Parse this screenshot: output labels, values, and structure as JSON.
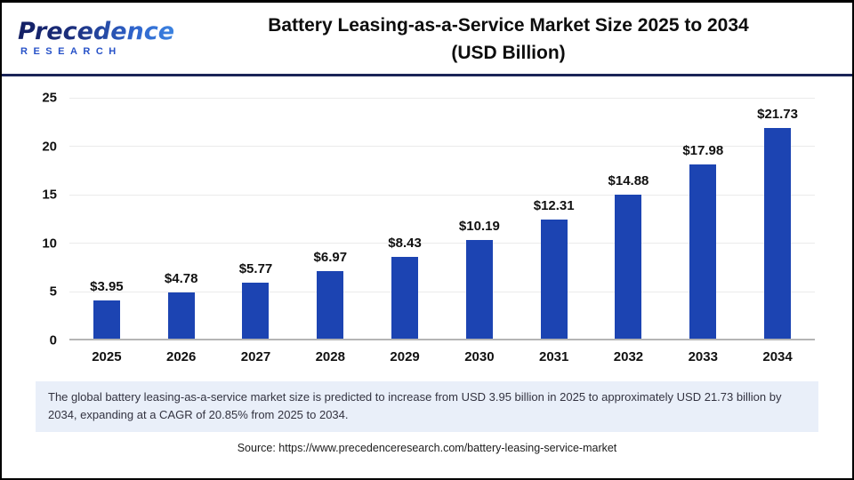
{
  "header": {
    "logo": {
      "brand": "Precedence",
      "subtitle": "RESEARCH"
    },
    "title_line1": "Battery Leasing-as-a-Service Market Size 2025 to 2034",
    "title_line2": "(USD Billion)"
  },
  "chart_data": {
    "type": "bar",
    "title": "Battery Leasing-as-a-Service Market Size 2025 to 2034 (USD Billion)",
    "categories": [
      "2025",
      "2026",
      "2027",
      "2028",
      "2029",
      "2030",
      "2031",
      "2032",
      "2033",
      "2034"
    ],
    "values": [
      3.95,
      4.78,
      5.77,
      6.97,
      8.43,
      10.19,
      12.31,
      14.88,
      17.98,
      21.73
    ],
    "value_labels": [
      "$3.95",
      "$4.78",
      "$5.77",
      "$6.97",
      "$8.43",
      "$10.19",
      "$12.31",
      "$14.88",
      "$17.98",
      "$21.73"
    ],
    "unit": "USD Billion",
    "ylim": [
      0,
      25
    ],
    "yticks": [
      0,
      5,
      10,
      15,
      20,
      25
    ],
    "grid": true,
    "legend_position": "none",
    "bar_color": "#1c44b2",
    "gridline_color": "#ebebeb",
    "axis_color": "#b5b5b5"
  },
  "summary": {
    "text": "The global battery leasing-as-a-service market size is predicted to increase from USD 3.95 billion in 2025 to approximately USD 21.73 billion by 2034, expanding at a CAGR of 20.85% from 2025 to 2034."
  },
  "source": {
    "text": "Source: https://www.precedenceresearch.com/battery-leasing-service-market"
  }
}
